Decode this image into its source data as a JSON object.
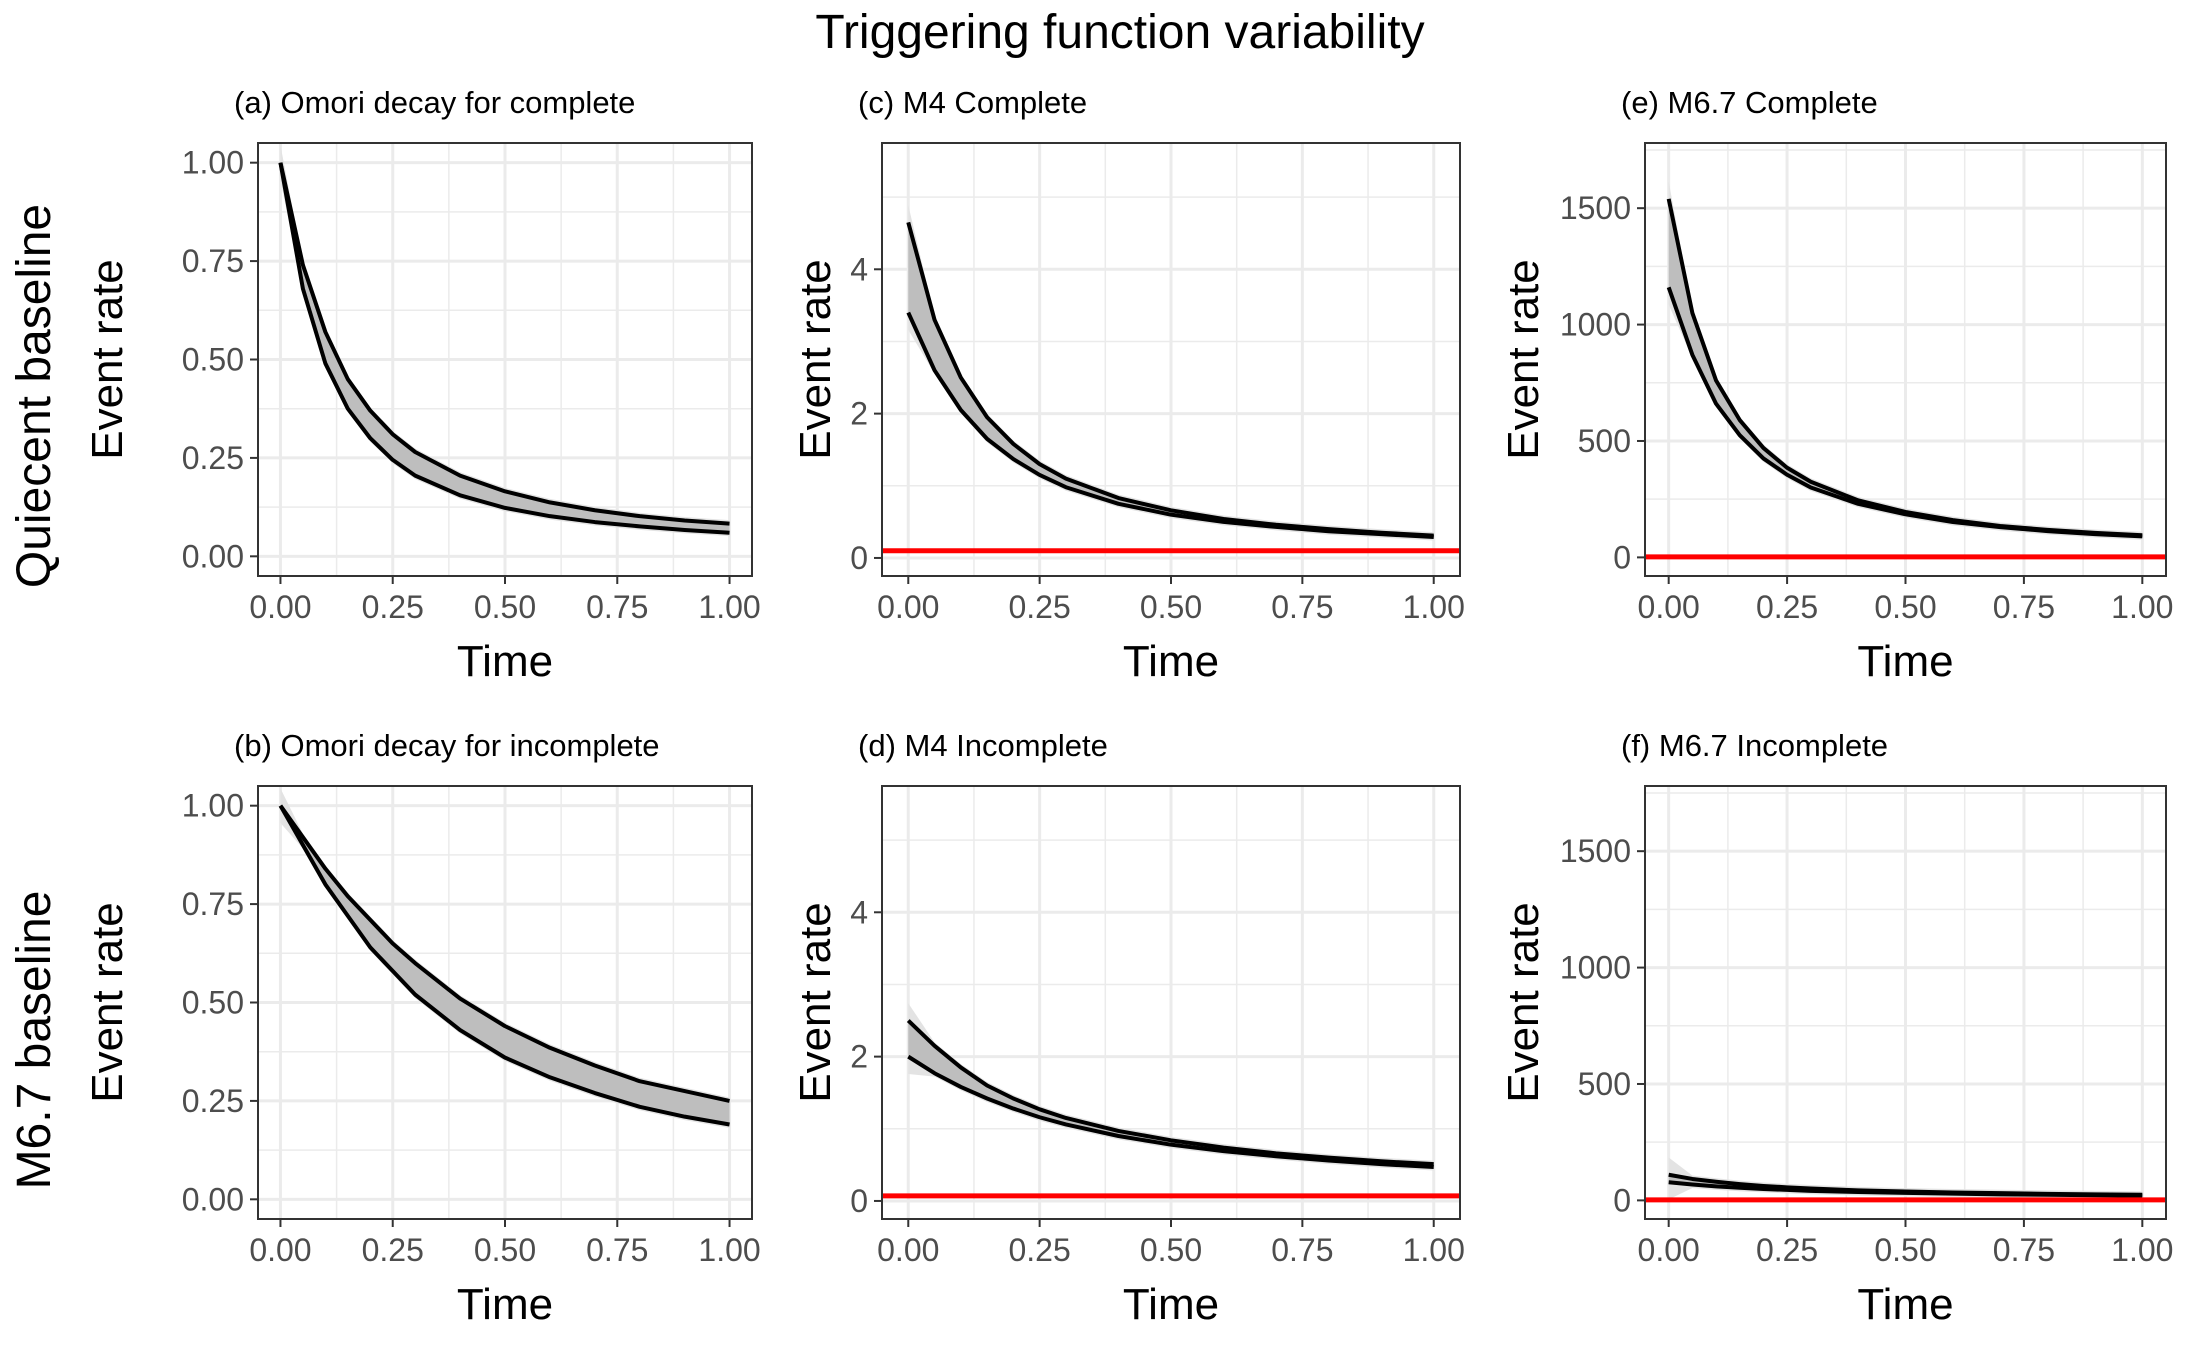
{
  "title": "Triggering  function variability",
  "row_labels": [
    "Quiecent baseline",
    "M6.7 baseline"
  ],
  "colors": {
    "band": "#bebebe",
    "outer_band": "#e3e3e3",
    "line": "#000000",
    "baseline": "#ff0000",
    "grid": "#ebebeb",
    "border": "#333333",
    "tick_text": "#4d4d4d"
  },
  "chart_data": [
    {
      "id": "a",
      "type": "area",
      "title": "(a) Omori decay for complete",
      "xlabel": "Time",
      "ylabel": "Event rate",
      "xlim": [
        -0.05,
        1.05
      ],
      "ylim": [
        -0.05,
        1.05
      ],
      "xticks": [
        0,
        0.25,
        0.5,
        0.75,
        1
      ],
      "xticklabels": [
        "0.00",
        "0.25",
        "0.50",
        "0.75",
        "1.00"
      ],
      "yticks": [
        0,
        0.25,
        0.5,
        0.75,
        1
      ],
      "yticklabels": [
        "0.00",
        "0.25",
        "0.50",
        "0.75",
        "1.00"
      ],
      "grid": true,
      "x": [
        0,
        0.05,
        0.1,
        0.15,
        0.2,
        0.25,
        0.3,
        0.4,
        0.5,
        0.6,
        0.7,
        0.8,
        0.9,
        1.0
      ],
      "upper": [
        1.0,
        0.74,
        0.57,
        0.45,
        0.37,
        0.31,
        0.265,
        0.205,
        0.165,
        0.137,
        0.117,
        0.102,
        0.091,
        0.083
      ],
      "lower": [
        1.0,
        0.68,
        0.49,
        0.375,
        0.3,
        0.245,
        0.205,
        0.155,
        0.123,
        0.102,
        0.087,
        0.076,
        0.067,
        0.06
      ],
      "baseline": null
    },
    {
      "id": "b",
      "type": "area",
      "title": "(b) Omori decay for incomplete",
      "xlabel": "Time",
      "ylabel": "Event rate",
      "xlim": [
        -0.05,
        1.05
      ],
      "ylim": [
        -0.05,
        1.05
      ],
      "xticks": [
        0,
        0.25,
        0.5,
        0.75,
        1
      ],
      "xticklabels": [
        "0.00",
        "0.25",
        "0.50",
        "0.75",
        "1.00"
      ],
      "yticks": [
        0,
        0.25,
        0.5,
        0.75,
        1
      ],
      "yticklabels": [
        "0.00",
        "0.25",
        "0.50",
        "0.75",
        "1.00"
      ],
      "grid": true,
      "x": [
        0,
        0.05,
        0.1,
        0.15,
        0.2,
        0.25,
        0.3,
        0.4,
        0.5,
        0.6,
        0.7,
        0.8,
        0.9,
        1.0
      ],
      "upper": [
        1.0,
        0.92,
        0.84,
        0.77,
        0.71,
        0.65,
        0.6,
        0.51,
        0.44,
        0.385,
        0.34,
        0.3,
        0.275,
        0.25
      ],
      "lower": [
        1.0,
        0.9,
        0.8,
        0.72,
        0.64,
        0.58,
        0.52,
        0.43,
        0.36,
        0.31,
        0.27,
        0.235,
        0.21,
        0.19
      ],
      "baseline": null
    },
    {
      "id": "c",
      "type": "area",
      "title": "(c) M4 Complete",
      "xlabel": "Time",
      "ylabel": "Event rate",
      "xlim": [
        -0.05,
        1.05
      ],
      "ylim": [
        -0.25,
        5.75
      ],
      "xticks": [
        0,
        0.25,
        0.5,
        0.75,
        1
      ],
      "xticklabels": [
        "0.00",
        "0.25",
        "0.50",
        "0.75",
        "1.00"
      ],
      "yticks": [
        0,
        2,
        4
      ],
      "yticklabels": [
        "0",
        "2",
        "4"
      ],
      "grid": true,
      "x": [
        0,
        0.05,
        0.1,
        0.15,
        0.2,
        0.25,
        0.3,
        0.4,
        0.5,
        0.6,
        0.7,
        0.8,
        0.9,
        1.0
      ],
      "upper": [
        4.65,
        3.3,
        2.5,
        1.95,
        1.58,
        1.3,
        1.1,
        0.83,
        0.66,
        0.54,
        0.46,
        0.4,
        0.35,
        0.31
      ],
      "lower": [
        3.4,
        2.6,
        2.05,
        1.65,
        1.37,
        1.15,
        0.98,
        0.75,
        0.6,
        0.5,
        0.43,
        0.37,
        0.33,
        0.29
      ],
      "baseline": 0.1
    },
    {
      "id": "d",
      "type": "area",
      "title": "(d) M4 Incomplete",
      "xlabel": "Time",
      "ylabel": "Event rate",
      "xlim": [
        -0.05,
        1.05
      ],
      "ylim": [
        -0.25,
        5.75
      ],
      "xticks": [
        0,
        0.25,
        0.5,
        0.75,
        1
      ],
      "xticklabels": [
        "0.00",
        "0.25",
        "0.50",
        "0.75",
        "1.00"
      ],
      "yticks": [
        0,
        2,
        4
      ],
      "yticklabels": [
        "0",
        "2",
        "4"
      ],
      "grid": true,
      "x": [
        0,
        0.05,
        0.1,
        0.15,
        0.2,
        0.25,
        0.3,
        0.4,
        0.5,
        0.6,
        0.7,
        0.8,
        0.9,
        1.0
      ],
      "upper": [
        2.5,
        2.15,
        1.85,
        1.6,
        1.42,
        1.27,
        1.15,
        0.97,
        0.84,
        0.74,
        0.66,
        0.6,
        0.55,
        0.51
      ],
      "lower": [
        2.0,
        1.77,
        1.58,
        1.42,
        1.28,
        1.16,
        1.06,
        0.9,
        0.78,
        0.69,
        0.62,
        0.56,
        0.51,
        0.47
      ],
      "baseline": 0.07
    },
    {
      "id": "e",
      "type": "area",
      "title": "(e) M6.7 Complete",
      "xlabel": "Time",
      "ylabel": "Event rate",
      "xlim": [
        -0.05,
        1.05
      ],
      "ylim": [
        -80,
        1780
      ],
      "xticks": [
        0,
        0.25,
        0.5,
        0.75,
        1
      ],
      "xticklabels": [
        "0.00",
        "0.25",
        "0.50",
        "0.75",
        "1.00"
      ],
      "yticks": [
        0,
        500,
        1000,
        1500
      ],
      "yticklabels": [
        "0",
        "500",
        "1000",
        "1500"
      ],
      "grid": true,
      "x": [
        0,
        0.05,
        0.1,
        0.15,
        0.2,
        0.25,
        0.3,
        0.4,
        0.5,
        0.6,
        0.7,
        0.8,
        0.9,
        1.0
      ],
      "upper": [
        1540,
        1050,
        760,
        590,
        470,
        385,
        325,
        245,
        195,
        160,
        135,
        118,
        105,
        95
      ],
      "lower": [
        1160,
        870,
        660,
        525,
        425,
        355,
        300,
        230,
        185,
        152,
        130,
        113,
        100,
        90
      ],
      "baseline": 2
    },
    {
      "id": "f",
      "type": "area",
      "title": "(f) M6.7 Incomplete",
      "xlabel": "Time",
      "ylabel": "Event rate",
      "xlim": [
        -0.05,
        1.05
      ],
      "ylim": [
        -80,
        1780
      ],
      "xticks": [
        0,
        0.25,
        0.5,
        0.75,
        1
      ],
      "xticklabels": [
        "0.00",
        "0.25",
        "0.50",
        "0.75",
        "1.00"
      ],
      "yticks": [
        0,
        500,
        1000,
        1500
      ],
      "yticklabels": [
        "0",
        "500",
        "1000",
        "1500"
      ],
      "grid": true,
      "x": [
        0,
        0.05,
        0.1,
        0.15,
        0.2,
        0.25,
        0.3,
        0.4,
        0.5,
        0.6,
        0.7,
        0.8,
        0.9,
        1.0
      ],
      "upper": [
        110,
        92,
        80,
        70,
        62,
        56,
        51,
        43,
        38,
        34,
        31,
        28,
        26,
        24
      ],
      "lower": [
        78,
        68,
        60,
        54,
        49,
        45,
        41,
        36,
        32,
        29,
        26,
        24,
        22,
        20
      ],
      "baseline": 2
    }
  ]
}
